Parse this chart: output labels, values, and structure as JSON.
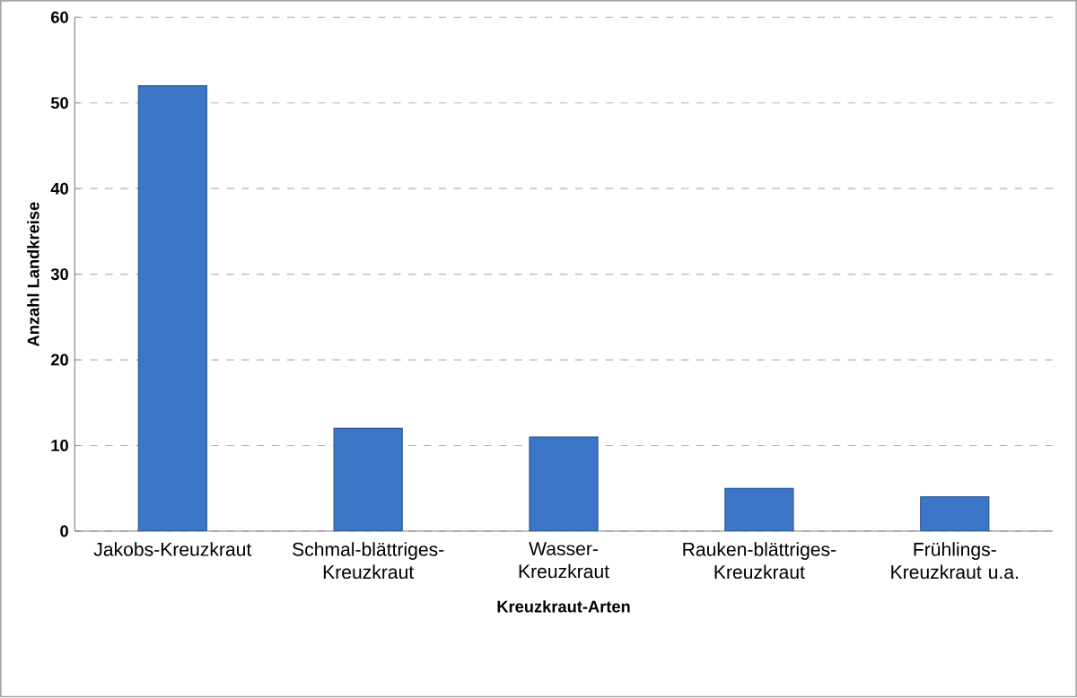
{
  "chart_data": {
    "type": "bar",
    "xlabel": "Kreuzkraut-Arten",
    "ylabel": "Anzahl Landkreise",
    "categories": [
      "Jakobs-Kreuzkraut",
      "Schmal-blättriges-Kreuzkraut",
      "Wasser-Kreuzkraut",
      "Rauken-blättriges-Kreuzkraut",
      "Frühlings-Kreuzkraut u.a."
    ],
    "values": [
      52,
      12,
      11,
      5,
      4
    ],
    "color": "#3b77c6",
    "ylim": [
      0,
      60
    ],
    "yticks": [
      0,
      10,
      20,
      30,
      40,
      50,
      60
    ],
    "grid": "y"
  }
}
